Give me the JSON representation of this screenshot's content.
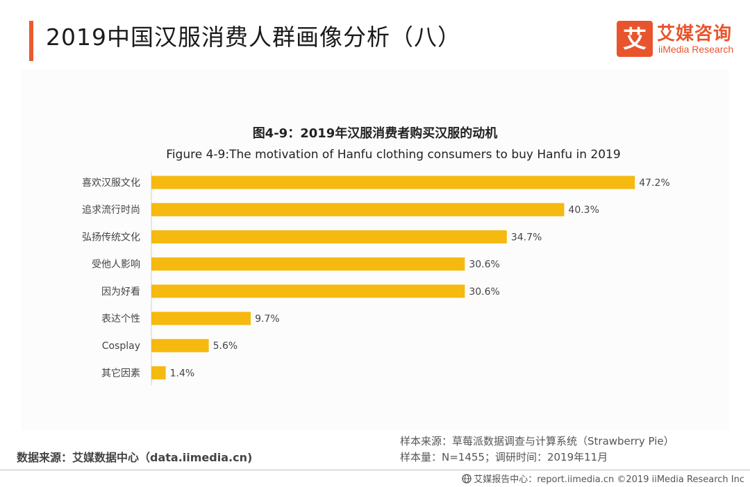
{
  "header": {
    "title": "2019中国汉服消费人群画像分析（八）",
    "logo_cn": "艾媒咨询",
    "logo_en": "iiMedia Research",
    "logo_mark": "艾"
  },
  "colors": {
    "accent": "#ea5a2c",
    "bar": "#f5b910",
    "logo": "#e8552d"
  },
  "chart_data": {
    "type": "bar",
    "orientation": "horizontal",
    "title": "图4-9：2019年汉服消费者购买汉服的动机",
    "subtitle": "Figure 4-9:The motivation of Hanfu clothing consumers to buy Hanfu in 2019",
    "categories": [
      "喜欢汉服文化",
      "追求流行时尚",
      "弘扬传统文化",
      "受他人影响",
      "因为好看",
      "表达个性",
      "Cosplay",
      "其它因素"
    ],
    "values": [
      47.2,
      40.3,
      34.7,
      30.6,
      30.6,
      9.7,
      5.6,
      1.4
    ],
    "value_labels": [
      "47.2%",
      "40.3%",
      "34.7%",
      "30.6%",
      "30.6%",
      "9.7%",
      "5.6%",
      "1.4%"
    ],
    "unit": "%",
    "xlim": [
      0,
      50
    ],
    "grid": false,
    "legend": "none"
  },
  "source": {
    "left": "数据来源：艾媒数据中心（data.iimedia.cn)",
    "sample_source": "样本来源：草莓派数据调查与计算系统（Strawberry Pie）",
    "sample_info": "样本量：N=1455；调研时间：2019年11月"
  },
  "footer": {
    "text": "艾媒报告中心：report.iimedia.cn  ©2019  iiMedia Research  Inc"
  }
}
